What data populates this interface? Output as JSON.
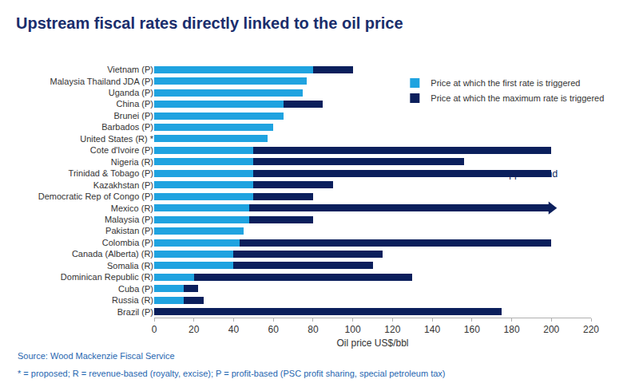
{
  "chart_data": {
    "type": "bar",
    "title": "Upstream fiscal rates directly linked to the oil price",
    "x_label": "Oil price US$/bbl",
    "source": "Source: Wood Mackenzie Fiscal Service",
    "note": "* = proposed; R = revenue-based (royalty, excise); P = profit-based (PSC profit sharing, special petroleum tax)",
    "orientation": "horizontal",
    "stacked": true,
    "grid": false,
    "legend": "top right",
    "categories": [
      "Vietnam (P)",
      "Malaysia Thailand JDA (P)",
      "Uganda (P)",
      "China (P)",
      "Brunei (P)",
      "Barbados (P)",
      "United States (R) *",
      "Cote d'Ivoire (P)",
      "Nigeria (R)",
      "Trinidad & Tobago (P)",
      "Kazakhstan (P)",
      "Democratic Rep of Congo (P)",
      "Mexico (R)",
      "Malaysia (P)",
      "Pakistan (P)",
      "Colombia (P)",
      "Canada (Alberta) (R)",
      "Somalia (R)",
      "Dominican Republic (R)",
      "Cuba (P)",
      "Russia (R)",
      "Brazil (P)"
    ],
    "series": [
      {
        "name": "Price at which the first rate is triggered",
        "color": "#1fa3e0",
        "values": [
          80,
          77,
          75,
          65,
          65,
          60,
          57,
          50,
          50,
          50,
          50,
          50,
          48,
          48,
          45,
          43,
          40,
          40,
          20,
          15,
          15,
          0
        ]
      },
      {
        "name": "Price at which the maximum rate is triggered",
        "color": "#0b1f5c",
        "values": [
          20,
          null,
          null,
          20,
          null,
          null,
          null,
          150,
          106,
          150,
          40,
          30,
          152,
          32,
          null,
          157,
          75,
          70,
          110,
          7,
          10,
          175
        ]
      }
    ],
    "xlim": [
      0,
      220
    ],
    "xticks": [
      0,
      20,
      40,
      60,
      80,
      100,
      120,
      140,
      160,
      180,
      200,
      220
    ],
    "annotations": [
      {
        "text": "No upper bound",
        "category": "Mexico (R)"
      }
    ]
  }
}
